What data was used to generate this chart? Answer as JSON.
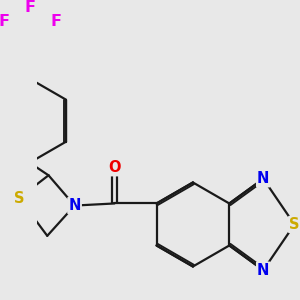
{
  "bg_color": "#e8e8e8",
  "bond_color": "#1a1a1a",
  "bond_width": 1.6,
  "dbo": 0.055,
  "atom_colors": {
    "F": "#ee00ee",
    "S": "#ccaa00",
    "N": "#0000ee",
    "O": "#ee0000",
    "C": "#1a1a1a"
  },
  "font_size": 10.5,
  "font_size_F": 11.5
}
